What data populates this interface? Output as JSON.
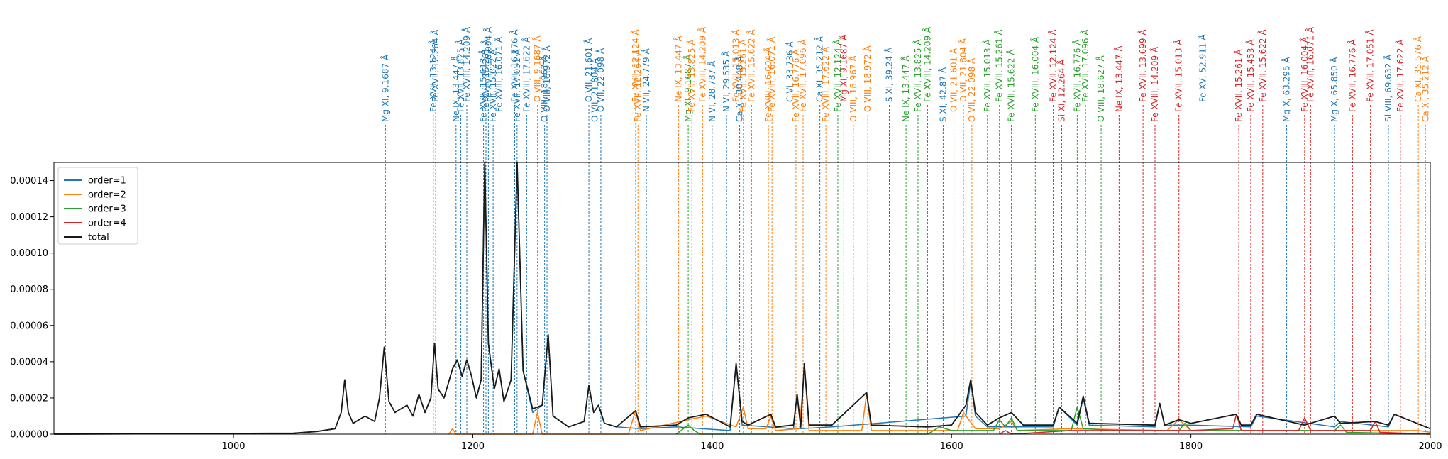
{
  "chart_data": {
    "type": "line",
    "title": "",
    "xlabel": "",
    "ylabel": "",
    "xlim": [
      850,
      2000
    ],
    "ylim": [
      0,
      0.00015
    ],
    "x_ticks": [
      1000,
      1200,
      1400,
      1600,
      1800,
      2000
    ],
    "x_tick_labels": [
      "1000",
      "1200",
      "1400",
      "1600",
      "1800",
      "2000"
    ],
    "y_ticks": [
      0,
      2e-05,
      4e-05,
      6e-05,
      8e-05,
      0.0001,
      0.00012,
      0.00014
    ],
    "y_tick_labels": [
      "0.00000",
      "0.00002",
      "0.00004",
      "0.00006",
      "0.00008",
      "0.00010",
      "0.00012",
      "0.00014"
    ],
    "grid": false,
    "legend_position": "top-left",
    "colors": {
      "order1": "#1f77b4",
      "order2": "#ff7f0e",
      "order3": "#2ca02c",
      "order4": "#d62728",
      "total": "#1a1a1a"
    },
    "series": [
      {
        "name": "order=1",
        "color": "#1f77b4",
        "x": [
          850,
          1050,
          1070,
          1085,
          1090,
          1093,
          1096,
          1100,
          1110,
          1118,
          1122,
          1126,
          1130,
          1135,
          1145,
          1150,
          1155,
          1160,
          1165,
          1168,
          1171,
          1176,
          1183,
          1187,
          1191,
          1195,
          1199,
          1203,
          1207,
          1210,
          1213,
          1218,
          1222,
          1226,
          1232,
          1237,
          1242,
          1250,
          1258,
          1263,
          1267,
          1280,
          1293,
          1297,
          1301,
          1305,
          1310,
          1320,
          1340,
          1370,
          1415,
          1420,
          1425,
          1468,
          1471,
          1474,
          1500,
          1612,
          1616,
          1620,
          1630,
          1685,
          1690,
          1705,
          1710,
          1715,
          1770,
          1774,
          1778,
          1800,
          1850,
          1855,
          1920,
          1925,
          1965,
          1970,
          2000
        ],
        "y": [
          0,
          5e-07,
          1.5e-06,
          3e-06,
          1.2e-05,
          3e-05,
          1.2e-05,
          6e-06,
          1e-05,
          7e-06,
          2e-05,
          4.8e-05,
          1.8e-05,
          1.2e-05,
          1.6e-05,
          1e-05,
          2.2e-05,
          1.2e-05,
          2e-05,
          5e-05,
          2.5e-05,
          2e-05,
          3.6e-05,
          4.1e-05,
          3.2e-05,
          4.1e-05,
          3.2e-05,
          2e-05,
          3e-05,
          0.00015,
          5e-05,
          2.5e-05,
          3.6e-05,
          1.8e-05,
          3e-05,
          0.00015,
          3.5e-05,
          1.2e-05,
          1.6e-05,
          5.5e-05,
          1e-05,
          4e-06,
          7e-06,
          2.7e-05,
          1.2e-05,
          1.6e-05,
          6e-06,
          4e-06,
          3e-06,
          4e-06,
          2e-06,
          3.9e-05,
          5e-06,
          3e-06,
          2.2e-05,
          3e-06,
          4e-06,
          1e-05,
          2.9e-05,
          1e-05,
          4e-06,
          4e-06,
          1.5e-05,
          5e-06,
          2e-05,
          5e-06,
          4e-06,
          1.7e-05,
          5e-06,
          5e-06,
          4e-06,
          1e-05,
          4e-06,
          7e-06,
          4e-06,
          1.1e-05,
          3e-06
        ]
      },
      {
        "name": "order=2",
        "color": "#ff7f0e",
        "x": [
          1180,
          1183,
          1186,
          1250,
          1254,
          1258,
          1330,
          1336,
          1340,
          1380,
          1395,
          1420,
          1426,
          1430,
          1445,
          1449,
          1453,
          1473,
          1477,
          1481,
          1525,
          1529,
          1533,
          1605,
          1610,
          1620,
          1640,
          1650,
          1655,
          1700,
          1780,
          1790,
          1800,
          1990,
          2000
        ],
        "y": [
          0,
          3e-06,
          0,
          0,
          1.2e-05,
          0,
          0,
          1.3e-05,
          2e-06,
          8e-06,
          1e-05,
          4e-06,
          1.5e-05,
          3e-06,
          3e-06,
          1e-05,
          2e-06,
          3e-06,
          3.7e-05,
          2e-06,
          2e-06,
          2.2e-05,
          2e-06,
          2e-06,
          1.2e-05,
          3e-06,
          3e-06,
          7e-06,
          2e-06,
          3e-06,
          2e-06,
          8e-06,
          2e-06,
          2e-06,
          1e-06
        ]
      },
      {
        "name": "order=3",
        "color": "#2ca02c",
        "x": [
          1370,
          1380,
          1385,
          1390,
          1580,
          1590,
          1600,
          1635,
          1640,
          1645,
          1650,
          1655,
          1700,
          1705,
          1710,
          1740,
          1790,
          1795,
          1800,
          1920,
          1925,
          1930,
          2000
        ],
        "y": [
          0,
          5e-06,
          2e-06,
          0,
          0,
          4e-06,
          2e-06,
          2e-06,
          8e-06,
          4e-06,
          9e-06,
          2e-06,
          2e-06,
          1.5e-05,
          3e-06,
          2e-06,
          2e-06,
          6e-06,
          2e-06,
          2e-06,
          5e-06,
          1e-06,
          0
        ]
      },
      {
        "name": "order=4",
        "color": "#d62728",
        "x": [
          1640,
          1645,
          1650,
          1700,
          1800,
          1835,
          1838,
          1842,
          1890,
          1895,
          1900,
          1950,
          1954,
          1958,
          2000
        ],
        "y": [
          0,
          2e-06,
          0,
          2e-06,
          2e-06,
          3e-06,
          1.1e-05,
          2e-06,
          2e-06,
          9e-06,
          2e-06,
          2e-06,
          7e-06,
          1e-06,
          0
        ]
      },
      {
        "name": "total",
        "color": "#1a1a1a",
        "x": [
          850,
          1050,
          1070,
          1085,
          1090,
          1093,
          1096,
          1100,
          1110,
          1118,
          1122,
          1126,
          1130,
          1135,
          1145,
          1150,
          1155,
          1160,
          1165,
          1168,
          1171,
          1176,
          1183,
          1187,
          1191,
          1195,
          1199,
          1203,
          1207,
          1210,
          1213,
          1218,
          1222,
          1226,
          1232,
          1237,
          1242,
          1250,
          1258,
          1263,
          1267,
          1280,
          1293,
          1297,
          1301,
          1305,
          1310,
          1320,
          1336,
          1340,
          1370,
          1380,
          1395,
          1415,
          1420,
          1425,
          1430,
          1449,
          1453,
          1468,
          1471,
          1474,
          1477,
          1481,
          1500,
          1529,
          1533,
          1580,
          1600,
          1612,
          1616,
          1620,
          1630,
          1640,
          1650,
          1660,
          1685,
          1690,
          1705,
          1710,
          1715,
          1770,
          1774,
          1778,
          1790,
          1800,
          1838,
          1842,
          1850,
          1855,
          1895,
          1920,
          1925,
          1954,
          1965,
          1970,
          2000
        ],
        "y": [
          0,
          5e-07,
          1.5e-06,
          3e-06,
          1.2e-05,
          3e-05,
          1.2e-05,
          6e-06,
          1e-05,
          7e-06,
          2e-05,
          4.8e-05,
          1.8e-05,
          1.2e-05,
          1.6e-05,
          1e-05,
          2.2e-05,
          1.2e-05,
          2e-05,
          5e-05,
          2.5e-05,
          2e-05,
          3.6e-05,
          4.1e-05,
          3.2e-05,
          4.1e-05,
          3.2e-05,
          2e-05,
          3e-05,
          0.00015,
          5e-05,
          2.5e-05,
          3.6e-05,
          1.8e-05,
          3e-05,
          0.00015,
          3.5e-05,
          1.4e-05,
          1.6e-05,
          5.5e-05,
          1e-05,
          4e-06,
          7e-06,
          2.7e-05,
          1.2e-05,
          1.6e-05,
          6e-06,
          4e-06,
          1.3e-05,
          4e-06,
          5e-06,
          9e-06,
          1.1e-05,
          4e-06,
          3.9e-05,
          7e-06,
          5e-06,
          1.1e-05,
          4e-06,
          5e-06,
          2.2e-05,
          4e-06,
          3.9e-05,
          5e-06,
          5e-06,
          2.3e-05,
          5e-06,
          4e-06,
          5e-06,
          1.6e-05,
          3e-05,
          1.2e-05,
          5e-06,
          9e-06,
          1.2e-05,
          5e-06,
          5e-06,
          1.5e-05,
          6e-06,
          2.1e-05,
          6e-06,
          5e-06,
          1.7e-05,
          5e-06,
          8e-06,
          6e-06,
          1.1e-05,
          5e-06,
          5e-06,
          1.1e-05,
          5e-06,
          1e-05,
          6e-06,
          7e-06,
          5e-06,
          1.1e-05,
          3e-06
        ]
      }
    ],
    "line_markers": [
      {
        "x": 1127,
        "label": "Mg XI, 9.1687 Å",
        "color": "#1f77b4"
      },
      {
        "x": 1167,
        "label": "Fe XVII, 13.124 Å",
        "color": "#1f77b4"
      },
      {
        "x": 1169,
        "label": "Fe XVII, 12.264 Å",
        "color": "#1f77b4"
      },
      {
        "x": 1186,
        "label": "Ne IX, 13.447 Å",
        "color": "#1f77b4"
      },
      {
        "x": 1190,
        "label": "Fe XVII, 13.825 Å",
        "color": "#1f77b4"
      },
      {
        "x": 1195,
        "label": "Fe XVIII, 14.209 Å",
        "color": "#1f77b4"
      },
      {
        "x": 1209,
        "label": "Fe XVII, 15.013 Å",
        "color": "#1f77b4"
      },
      {
        "x": 1211,
        "label": "Fe XVII, 15.261 Å",
        "color": "#1f77b4"
      },
      {
        "x": 1213,
        "label": "Fe XVIII, 16.004 Å",
        "color": "#1f77b4"
      },
      {
        "x": 1217,
        "label": "Fe XVII, 15.622 Å",
        "color": "#1f77b4"
      },
      {
        "x": 1222,
        "label": "Fe XVIII, 16.071 Å",
        "color": "#1f77b4"
      },
      {
        "x": 1235,
        "label": "Fe XVII, 16.776 Å",
        "color": "#1f77b4"
      },
      {
        "x": 1237,
        "label": "Fe XVII, 17.051 Å",
        "color": "#1f77b4"
      },
      {
        "x": 1245,
        "label": "Fe XVIII, 17.622 Å",
        "color": "#1f77b4"
      },
      {
        "x": 1254,
        "label": "O VIII, 9.1687 Å",
        "color": "#ff7f0e"
      },
      {
        "x": 1260,
        "label": "O VIII, 18.967 Å",
        "color": "#1f77b4"
      },
      {
        "x": 1262,
        "label": "O VIII, 18.972 Å",
        "color": "#1f77b4"
      },
      {
        "x": 1297,
        "label": "O VII, 21.601 Å",
        "color": "#1f77b4"
      },
      {
        "x": 1302,
        "label": "O VII, 21.804 Å",
        "color": "#1f77b4"
      },
      {
        "x": 1307,
        "label": "O VII, 22.098 Å",
        "color": "#1f77b4"
      },
      {
        "x": 1336,
        "label": "Fe XVII, 12.124 Å",
        "color": "#ff7f0e"
      },
      {
        "x": 1338,
        "label": "Fe XVII, 12.264 Å",
        "color": "#ff7f0e"
      },
      {
        "x": 1345,
        "label": "N VII, 24.779 Å",
        "color": "#1f77b4"
      },
      {
        "x": 1372,
        "label": "Ne IX, 13.447 Å",
        "color": "#ff7f0e"
      },
      {
        "x": 1380,
        "label": "Mg XI, 9.1687 Å",
        "color": "#2ca02c"
      },
      {
        "x": 1383,
        "label": "Fe XVII, 13.825 Å",
        "color": "#ff7f0e"
      },
      {
        "x": 1392,
        "label": "Fe XVIII, 14.209 Å",
        "color": "#ff7f0e"
      },
      {
        "x": 1400,
        "label": "N VI, 28.787 Å",
        "color": "#1f77b4"
      },
      {
        "x": 1412,
        "label": "N VI, 29.535 Å",
        "color": "#1f77b4"
      },
      {
        "x": 1420,
        "label": "Fe XVII, 15.013 Å",
        "color": "#ff7f0e"
      },
      {
        "x": 1423,
        "label": "Ca XI, 30.448 Å",
        "color": "#1f77b4"
      },
      {
        "x": 1426,
        "label": "Fe XVII, 15.261 Å",
        "color": "#ff7f0e"
      },
      {
        "x": 1433,
        "label": "Fe XVII, 15.622 Å",
        "color": "#ff7f0e"
      },
      {
        "x": 1447,
        "label": "Fe XVIII, 16.004 Å",
        "color": "#ff7f0e"
      },
      {
        "x": 1450,
        "label": "Fe XVIII, 16.071 Å",
        "color": "#ff7f0e"
      },
      {
        "x": 1465,
        "label": "C VI, 33.736 Å",
        "color": "#1f77b4"
      },
      {
        "x": 1470,
        "label": "Fe XVII, 16.776 Å",
        "color": "#ff7f0e"
      },
      {
        "x": 1476,
        "label": "Fe XVII, 17.096 Å",
        "color": "#ff7f0e"
      },
      {
        "x": 1490,
        "label": "Ca XI, 35.212 Å",
        "color": "#1f77b4"
      },
      {
        "x": 1495,
        "label": "Fe XVIII, 17.622 Å",
        "color": "#ff7f0e"
      },
      {
        "x": 1505,
        "label": "Fe XVII, 12.124 Å",
        "color": "#2ca02c"
      },
      {
        "x": 1510,
        "label": "Mg XI, 9.1687 Å",
        "color": "#d62728"
      },
      {
        "x": 1518,
        "label": "O VIII, 18.967 Å",
        "color": "#ff7f0e"
      },
      {
        "x": 1530,
        "label": "O VIII, 18.972 Å",
        "color": "#ff7f0e"
      },
      {
        "x": 1548,
        "label": "S XI, 39.24 Å",
        "color": "#1f77b4"
      },
      {
        "x": 1562,
        "label": "Ne IX, 13.447 Å",
        "color": "#2ca02c"
      },
      {
        "x": 1572,
        "label": "Fe XVII, 13.825 Å",
        "color": "#2ca02c"
      },
      {
        "x": 1580,
        "label": "Fe XVIII, 14.209 Å",
        "color": "#2ca02c"
      },
      {
        "x": 1593,
        "label": "S XI, 42.87 Å",
        "color": "#1f77b4"
      },
      {
        "x": 1602,
        "label": "O VII, 21.601 Å",
        "color": "#ff7f0e"
      },
      {
        "x": 1610,
        "label": "O VII, 21.804 Å",
        "color": "#ff7f0e"
      },
      {
        "x": 1617,
        "label": "O VII, 22.098 Å",
        "color": "#ff7f0e"
      },
      {
        "x": 1630,
        "label": "Fe XVII, 15.013 Å",
        "color": "#2ca02c"
      },
      {
        "x": 1640,
        "label": "Fe XVII, 15.261 Å",
        "color": "#2ca02c"
      },
      {
        "x": 1650,
        "label": "Fe XVII, 15.622 Å",
        "color": "#2ca02c"
      },
      {
        "x": 1670,
        "label": "Fe XVIII, 16.004 Å",
        "color": "#2ca02c"
      },
      {
        "x": 1685,
        "label": "Fe XVII, 12.124 Å",
        "color": "#d62728"
      },
      {
        "x": 1692,
        "label": "Si XI, 12.264 Å",
        "color": "#d62728"
      },
      {
        "x": 1705,
        "label": "Fe XVII, 16.776 Å",
        "color": "#2ca02c"
      },
      {
        "x": 1712,
        "label": "Fe XVII, 17.096 Å",
        "color": "#2ca02c"
      },
      {
        "x": 1725,
        "label": "O VIII, 18.627 Å",
        "color": "#2ca02c"
      },
      {
        "x": 1740,
        "label": "Ne IX, 13.447 Å",
        "color": "#d62728"
      },
      {
        "x": 1760,
        "label": "Fe XVII, 13.699 Å",
        "color": "#d62728"
      },
      {
        "x": 1770,
        "label": "Fe XVIII, 14.209 Å",
        "color": "#d62728"
      },
      {
        "x": 1790,
        "label": "Fe XVII, 15.013 Å",
        "color": "#d62728"
      },
      {
        "x": 1810,
        "label": "Fe XV, 52.911 Å",
        "color": "#1f77b4"
      },
      {
        "x": 1840,
        "label": "Fe XVII, 15.261 Å",
        "color": "#d62728"
      },
      {
        "x": 1850,
        "label": "Fe XVII, 15.453 Å",
        "color": "#d62728"
      },
      {
        "x": 1860,
        "label": "Fe XVII, 15.622 Å",
        "color": "#d62728"
      },
      {
        "x": 1880,
        "label": "Mg X, 63.295 Å",
        "color": "#1f77b4"
      },
      {
        "x": 1895,
        "label": "Fe XVIII, 16.004 Å",
        "color": "#d62728"
      },
      {
        "x": 1900,
        "label": "Fe XVIII, 16.071 Å",
        "color": "#d62728"
      },
      {
        "x": 1920,
        "label": "Mg X, 65.850 Å",
        "color": "#1f77b4"
      },
      {
        "x": 1935,
        "label": "Fe XVII, 16.776 Å",
        "color": "#d62728"
      },
      {
        "x": 1950,
        "label": "Fe XVII, 17.051 Å",
        "color": "#d62728"
      },
      {
        "x": 1965,
        "label": "Si VIII, 69.632 Å",
        "color": "#1f77b4"
      },
      {
        "x": 1975,
        "label": "Fe XVII, 17.622 Å",
        "color": "#d62728"
      },
      {
        "x": 1990,
        "label": "Ca XI, 35.576 Å",
        "color": "#ff7f0e"
      },
      {
        "x": 1996,
        "label": "Ca XI, 35.212 Å",
        "color": "#ff7f0e"
      }
    ]
  }
}
